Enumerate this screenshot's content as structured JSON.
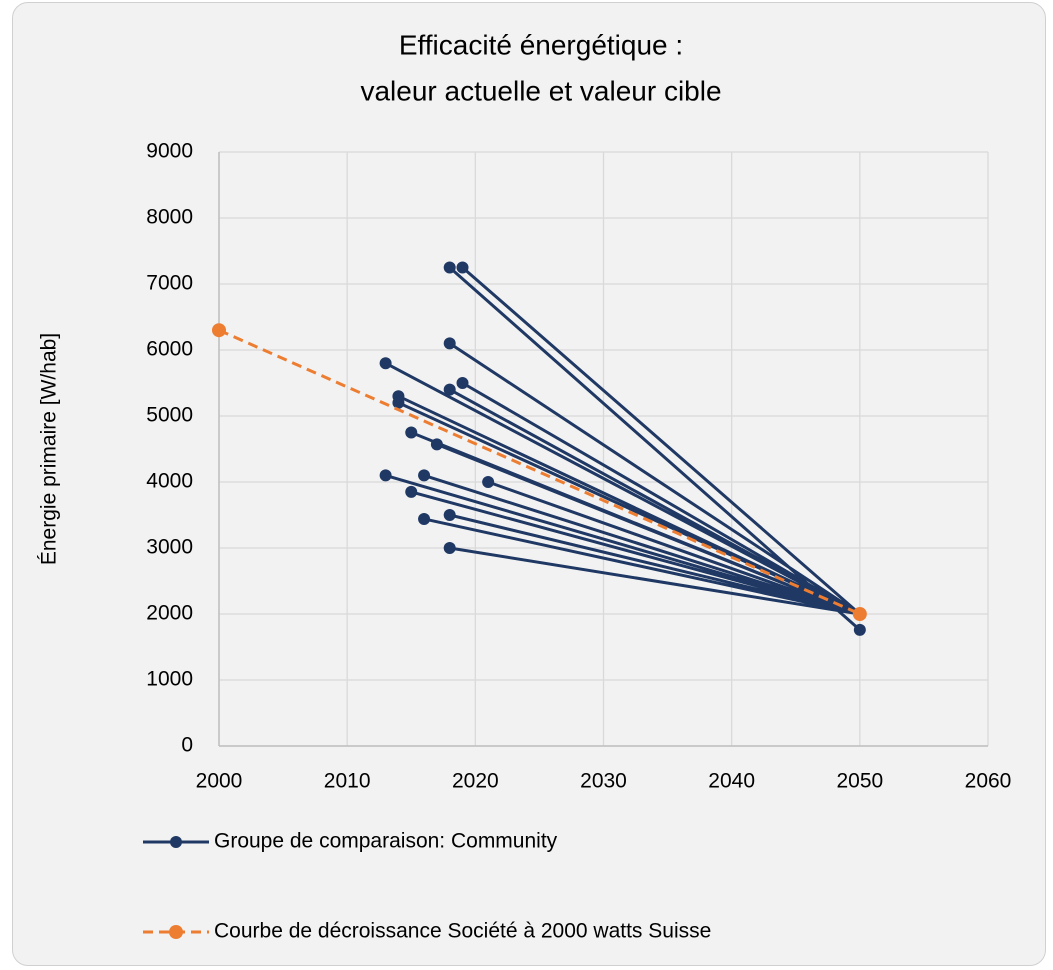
{
  "chart_data": {
    "type": "line",
    "title": [
      "Efficacité énergétique :",
      "valeur actuelle et valeur cible"
    ],
    "y_label": "Énergie primaire [W/hab]",
    "xlim": [
      2000,
      2060
    ],
    "xticks": [
      2000,
      2010,
      2020,
      2030,
      2040,
      2050,
      2060
    ],
    "ylim": [
      0,
      9000
    ],
    "yticks": [
      0,
      1000,
      2000,
      3000,
      4000,
      5000,
      6000,
      7000,
      8000,
      9000
    ],
    "grid": true,
    "series": [
      {
        "name": "Groupe de comparaison: Community",
        "color": "#1f3864",
        "dashed": false,
        "x": [
          2018,
          2050,
          null,
          2019,
          2050,
          null,
          2018,
          2050,
          null,
          2013,
          2050,
          null,
          2018,
          2050,
          null,
          2019,
          2050,
          null,
          2014,
          2050,
          null,
          2014,
          2050,
          null,
          2015,
          2050,
          null,
          2017,
          2050,
          null,
          2013,
          2050,
          null,
          2016,
          2050,
          null,
          2021,
          2050,
          null,
          2015,
          2050,
          null,
          2018,
          2050,
          null,
          2016,
          2050,
          null,
          2018,
          2050
        ],
        "values": [
          7250,
          1760,
          null,
          7250,
          2000,
          null,
          6100,
          2000,
          null,
          5800,
          2000,
          null,
          5400,
          2000,
          null,
          5500,
          2000,
          null,
          5300,
          2000,
          null,
          5200,
          2000,
          null,
          4750,
          2000,
          null,
          4570,
          2000,
          null,
          4100,
          2000,
          null,
          4100,
          2000,
          null,
          4000,
          2000,
          null,
          3850,
          2000,
          null,
          3500,
          2000,
          null,
          3440,
          2000,
          null,
          3000,
          2000
        ]
      },
      {
        "name": "Courbe de décroissance Société à 2000 watts Suisse",
        "color": "#ed7d31",
        "dashed": true,
        "x": [
          2000,
          2050
        ],
        "values": [
          6300,
          2000
        ]
      }
    ]
  }
}
